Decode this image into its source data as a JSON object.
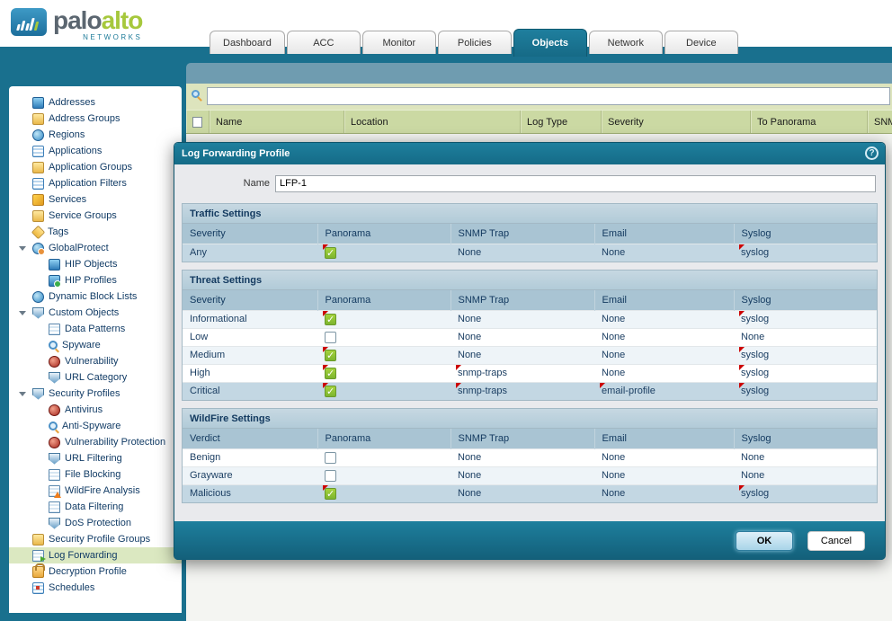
{
  "brand": {
    "name_part1": "palo",
    "name_part2": "alto",
    "tagline": "NETWORKS"
  },
  "nav": {
    "tabs": [
      {
        "label": "Dashboard",
        "active": false
      },
      {
        "label": "ACC",
        "active": false
      },
      {
        "label": "Monitor",
        "active": false
      },
      {
        "label": "Policies",
        "active": false
      },
      {
        "label": "Objects",
        "active": true
      },
      {
        "label": "Network",
        "active": false
      },
      {
        "label": "Device",
        "active": false
      }
    ]
  },
  "sidebar": {
    "items": [
      {
        "label": "Addresses",
        "icon": "addresses",
        "level": 0
      },
      {
        "label": "Address Groups",
        "icon": "folder",
        "level": 0
      },
      {
        "label": "Regions",
        "icon": "globe",
        "level": 0
      },
      {
        "label": "Applications",
        "icon": "grid",
        "level": 0
      },
      {
        "label": "Application Groups",
        "icon": "folder-grid",
        "level": 0
      },
      {
        "label": "Application Filters",
        "icon": "filter",
        "level": 0
      },
      {
        "label": "Services",
        "icon": "tools",
        "level": 0
      },
      {
        "label": "Service Groups",
        "icon": "tools-folder",
        "level": 0
      },
      {
        "label": "Tags",
        "icon": "tag",
        "level": 0
      },
      {
        "label": "GlobalProtect",
        "icon": "globe-user",
        "level": 0,
        "expandable": true
      },
      {
        "label": "HIP Objects",
        "icon": "monitor-question",
        "level": 1
      },
      {
        "label": "HIP Profiles",
        "icon": "monitor-check",
        "level": 1
      },
      {
        "label": "Dynamic Block Lists",
        "icon": "block-list",
        "level": 0
      },
      {
        "label": "Custom Objects",
        "icon": "shield-gear",
        "level": 0,
        "expandable": true
      },
      {
        "label": "Data Patterns",
        "icon": "doc",
        "level": 1
      },
      {
        "label": "Spyware",
        "icon": "magnifier",
        "level": 1
      },
      {
        "label": "Vulnerability",
        "icon": "bug",
        "level": 1
      },
      {
        "label": "URL Category",
        "icon": "shield-globe",
        "level": 1
      },
      {
        "label": "Security Profiles",
        "icon": "shield-x",
        "level": 0,
        "expandable": true
      },
      {
        "label": "Antivirus",
        "icon": "virus",
        "level": 1
      },
      {
        "label": "Anti-Spyware",
        "icon": "magnifier",
        "level": 1
      },
      {
        "label": "Vulnerability Protection",
        "icon": "bug",
        "level": 1
      },
      {
        "label": "URL Filtering",
        "icon": "shield-globe",
        "level": 1
      },
      {
        "label": "File Blocking",
        "icon": "doc-block",
        "level": 1
      },
      {
        "label": "WildFire Analysis",
        "icon": "doc-flame",
        "level": 1
      },
      {
        "label": "Data Filtering",
        "icon": "magnifier-doc",
        "level": 1
      },
      {
        "label": "DoS Protection",
        "icon": "shield-bolt",
        "level": 1
      },
      {
        "label": "Security Profile Groups",
        "icon": "folder-shield",
        "level": 0
      },
      {
        "label": "Log Forwarding",
        "icon": "doc-forward",
        "level": 0,
        "selected": true
      },
      {
        "label": "Decryption Profile",
        "icon": "lock",
        "level": 0
      },
      {
        "label": "Schedules",
        "icon": "calendar",
        "level": 0
      }
    ]
  },
  "listing": {
    "search_value": "",
    "columns": [
      "Name",
      "Location",
      "Log Type",
      "Severity",
      "To Panorama",
      "SNMP"
    ]
  },
  "dialog": {
    "title": "Log Forwarding Profile",
    "help_icon": "?",
    "name_label": "Name",
    "name_value": "LFP-1",
    "sections": [
      {
        "title": "Traffic Settings",
        "columns": [
          "Severity",
          "Panorama",
          "SNMP Trap",
          "Email",
          "Syslog"
        ],
        "rows": [
          {
            "label": "Any",
            "checked": true,
            "snmp": "None",
            "email": "None",
            "syslog": "syslog",
            "tint": "strong",
            "marks": [
              "panorama",
              "syslog"
            ]
          }
        ]
      },
      {
        "title": "Threat Settings",
        "columns": [
          "Severity",
          "Panorama",
          "SNMP Trap",
          "Email",
          "Syslog"
        ],
        "rows": [
          {
            "label": "Informational",
            "checked": true,
            "snmp": "None",
            "email": "None",
            "syslog": "syslog",
            "tint": "light",
            "marks": [
              "panorama",
              "syslog"
            ]
          },
          {
            "label": "Low",
            "checked": false,
            "snmp": "None",
            "email": "None",
            "syslog": "None",
            "tint": "none",
            "marks": []
          },
          {
            "label": "Medium",
            "checked": true,
            "snmp": "None",
            "email": "None",
            "syslog": "syslog",
            "tint": "light",
            "marks": [
              "panorama",
              "syslog"
            ]
          },
          {
            "label": "High",
            "checked": true,
            "snmp": "snmp-traps",
            "email": "None",
            "syslog": "syslog",
            "tint": "none",
            "marks": [
              "panorama",
              "snmp",
              "syslog"
            ]
          },
          {
            "label": "Critical",
            "checked": true,
            "snmp": "snmp-traps",
            "email": "email-profile",
            "syslog": "syslog",
            "tint": "strong",
            "marks": [
              "panorama",
              "snmp",
              "email",
              "syslog"
            ]
          }
        ]
      },
      {
        "title": "WildFire Settings",
        "columns": [
          "Verdict",
          "Panorama",
          "SNMP Trap",
          "Email",
          "Syslog"
        ],
        "rows": [
          {
            "label": "Benign",
            "checked": false,
            "snmp": "None",
            "email": "None",
            "syslog": "None",
            "tint": "none",
            "marks": []
          },
          {
            "label": "Grayware",
            "checked": false,
            "snmp": "None",
            "email": "None",
            "syslog": "None",
            "tint": "light",
            "marks": []
          },
          {
            "label": "Malicious",
            "checked": true,
            "snmp": "None",
            "email": "None",
            "syslog": "syslog",
            "tint": "strong",
            "marks": [
              "panorama",
              "syslog"
            ]
          }
        ]
      }
    ],
    "buttons": {
      "ok": "OK",
      "cancel": "Cancel"
    }
  },
  "colors": {
    "accent_teal": "#19708e",
    "listing_header_green": "#cbd9a3",
    "selected_row_blue": "#c3d7e3",
    "checkbox_green": "#8dc63f",
    "sidebar_selected_green": "#dbe8c1",
    "modified_mark_red": "#cc0000"
  }
}
